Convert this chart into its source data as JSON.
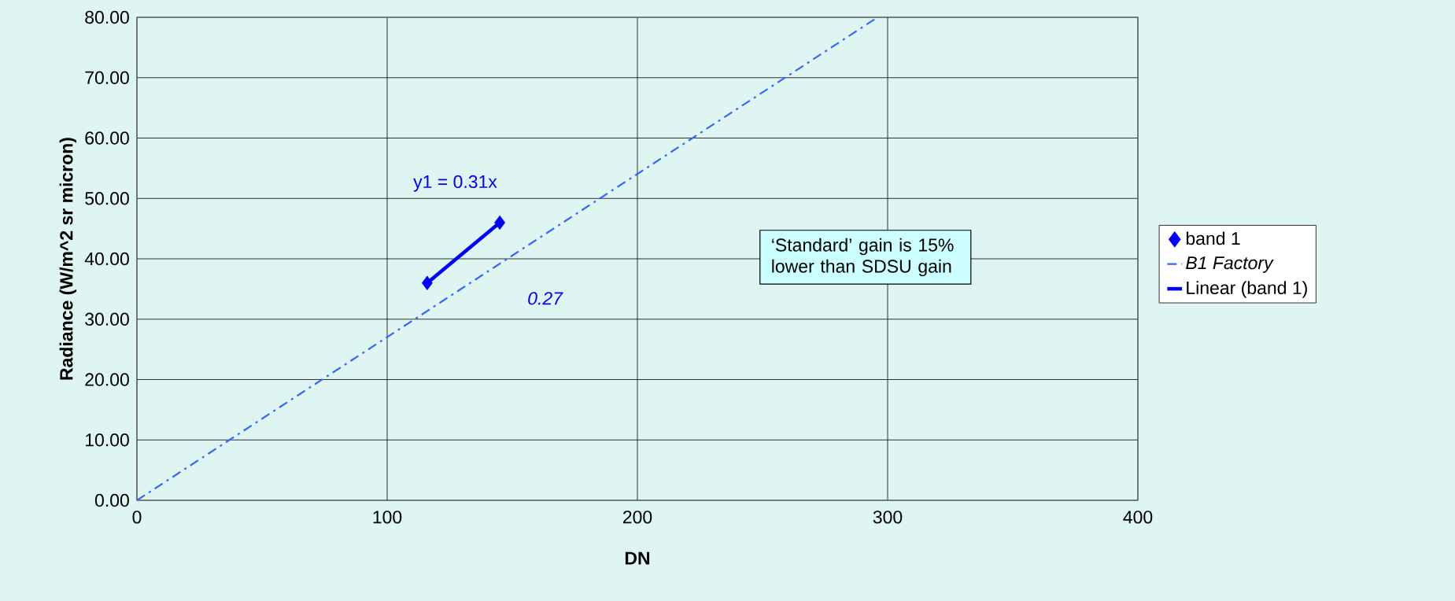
{
  "chart_data": {
    "type": "scatter",
    "xlabel": "DN",
    "ylabel": "Radiance (W/m^2 sr micron)",
    "xlim": [
      0,
      400
    ],
    "xticks": [
      0,
      100,
      200,
      300,
      400
    ],
    "ylim": [
      0,
      80
    ],
    "yticks": [
      {
        "value": 0,
        "label": "0.00"
      },
      {
        "value": 10,
        "label": "10.00"
      },
      {
        "value": 20,
        "label": "20.00"
      },
      {
        "value": 30,
        "label": "30.00"
      },
      {
        "value": 40,
        "label": "40.00"
      },
      {
        "value": 50,
        "label": "50.00"
      },
      {
        "value": 60,
        "label": "60.00"
      },
      {
        "value": 70,
        "label": "70.00"
      },
      {
        "value": 80,
        "label": "80.00"
      }
    ],
    "grid": true,
    "legend": "right",
    "series": [
      {
        "name": "band 1",
        "marker": "diamond",
        "color": "#0000ff",
        "x": [
          116,
          145
        ],
        "values": [
          36,
          46
        ]
      },
      {
        "name": "*B1 Factory*",
        "type": "line",
        "line_style": "dashdot",
        "color": "#3366ff",
        "x": [
          0,
          296
        ],
        "values": [
          0,
          80
        ]
      },
      {
        "name": "Linear (band 1)",
        "type": "line",
        "line_style": "solid",
        "color": "#0000ff",
        "x": [
          116,
          145
        ],
        "values": [
          36,
          46
        ]
      }
    ],
    "annotations": [
      "y1 = 0.31x",
      "*0.27*",
      "‘Standard’ gain is 15% lower than SDSU gain"
    ]
  }
}
